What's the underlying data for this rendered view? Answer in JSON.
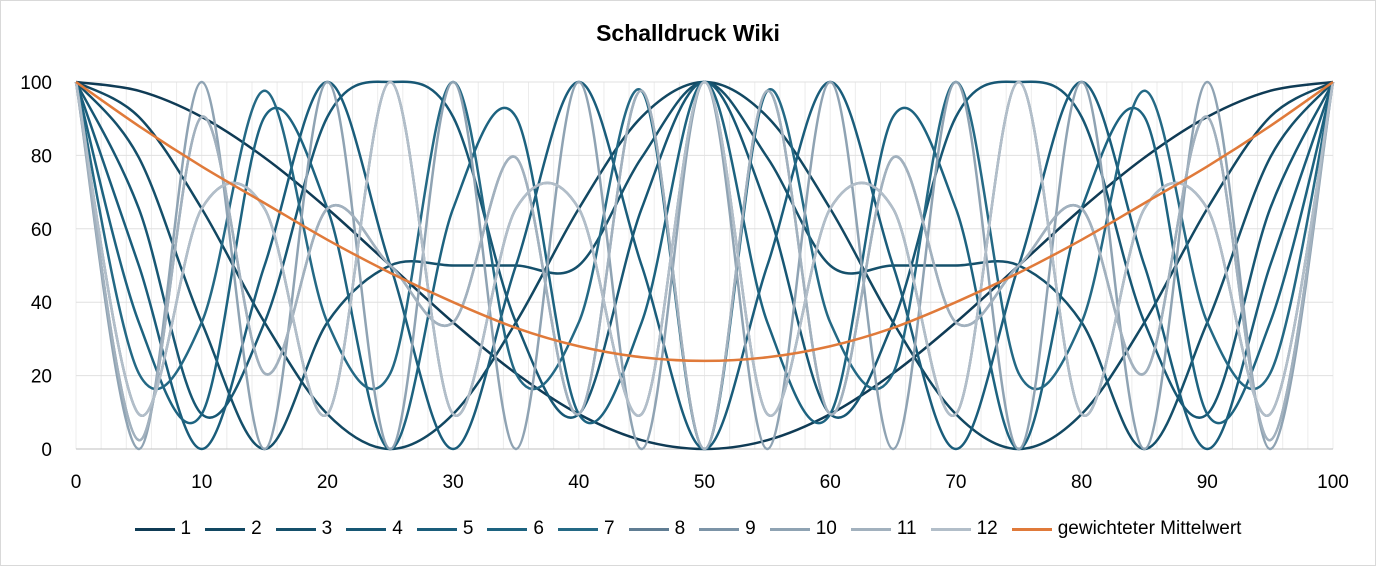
{
  "chart_data": {
    "type": "line",
    "title": "Schalldruck Wiki",
    "xlabel": "",
    "ylabel": "",
    "xlim": [
      0,
      100
    ],
    "ylim": [
      0,
      100
    ],
    "x_ticks": [
      0,
      10,
      20,
      30,
      40,
      50,
      60,
      70,
      80,
      90,
      100
    ],
    "y_ticks": [
      0,
      20,
      40,
      60,
      80,
      100
    ],
    "grid": true,
    "legend_position": "bottom",
    "x": [
      0,
      5,
      10,
      15,
      20,
      25,
      30,
      35,
      40,
      45,
      50,
      55,
      60,
      65,
      70,
      75,
      80,
      85,
      90,
      95,
      100
    ],
    "series": [
      {
        "name": "1",
        "color": "#0f3b55",
        "values": [
          100,
          97.6,
          90.5,
          79.4,
          65.5,
          50.0,
          34.5,
          20.6,
          9.5,
          2.4,
          0,
          2.4,
          9.5,
          20.6,
          34.5,
          50.0,
          65.5,
          79.4,
          90.5,
          97.6,
          100
        ]
      },
      {
        "name": "2",
        "color": "#124862",
        "values": [
          100,
          90.5,
          65.5,
          34.5,
          9.5,
          0,
          9.5,
          34.5,
          65.5,
          90.5,
          100,
          90.5,
          65.5,
          34.5,
          9.5,
          0,
          9.5,
          34.5,
          65.5,
          90.5,
          100
        ]
      },
      {
        "name": "3",
        "color": "#15506b",
        "values": [
          100,
          79.4,
          34.5,
          0,
          34.5,
          50.0,
          50.0,
          50.0,
          50.0,
          79.4,
          100,
          79.4,
          50.0,
          50.0,
          50.0,
          50.0,
          34.5,
          0,
          34.5,
          79.4,
          100
        ]
      },
      {
        "name": "4",
        "color": "#175774",
        "values": [
          100,
          65.5,
          9.5,
          34.5,
          90.5,
          100,
          90.5,
          34.5,
          9.5,
          65.5,
          100,
          65.5,
          9.5,
          34.5,
          90.5,
          100,
          90.5,
          34.5,
          9.5,
          65.5,
          100
        ]
      },
      {
        "name": "5",
        "color": "#1a5d7b",
        "values": [
          100,
          50.0,
          0,
          50.0,
          100,
          50.0,
          0,
          50.0,
          100,
          50.0,
          0,
          50.0,
          100,
          50.0,
          0,
          50.0,
          100,
          50.0,
          0,
          50.0,
          100
        ]
      },
      {
        "name": "6",
        "color": "#1d6380",
        "values": [
          100,
          34.5,
          9.5,
          90.5,
          65.5,
          0,
          65.5,
          90.5,
          9.5,
          34.5,
          100,
          34.5,
          9.5,
          90.5,
          65.5,
          0,
          65.5,
          90.5,
          9.5,
          34.5,
          100
        ]
      },
      {
        "name": "7",
        "color": "#246985",
        "values": [
          100,
          20.6,
          34.5,
          97.6,
          34.5,
          20.6,
          100,
          20.6,
          34.5,
          97.6,
          0,
          97.6,
          34.5,
          20.6,
          100,
          20.6,
          34.5,
          97.6,
          34.5,
          20.6,
          100
        ]
      },
      {
        "name": "8",
        "color": "#607d93",
        "values": [
          100,
          9.5,
          65.5,
          65.5,
          9.5,
          100,
          9.5,
          65.5,
          65.5,
          9.5,
          100,
          9.5,
          65.5,
          65.5,
          9.5,
          100,
          9.5,
          65.5,
          65.5,
          9.5,
          100
        ]
      },
      {
        "name": "9",
        "color": "#7c94a7",
        "values": [
          100,
          2.4,
          90.5,
          20.6,
          65.5,
          50.0,
          34.5,
          79.4,
          9.5,
          97.6,
          0,
          97.6,
          9.5,
          79.4,
          34.5,
          50.0,
          65.5,
          20.6,
          90.5,
          2.4,
          100
        ]
      },
      {
        "name": "10",
        "color": "#8fa3b3",
        "values": [
          100,
          0,
          100,
          0,
          100,
          0,
          100,
          0,
          100,
          0,
          100,
          0,
          100,
          0,
          100,
          0,
          100,
          0,
          100,
          0,
          100
        ]
      },
      {
        "name": "11",
        "color": "#a2b1be",
        "values": [
          100,
          2.4,
          90.5,
          20.6,
          65.5,
          50.0,
          34.5,
          79.4,
          9.5,
          97.6,
          0,
          97.6,
          9.5,
          79.4,
          34.5,
          50.0,
          65.5,
          20.6,
          90.5,
          2.4,
          100
        ]
      },
      {
        "name": "12",
        "color": "#b2bec9",
        "values": [
          100,
          9.5,
          65.5,
          65.5,
          9.5,
          100,
          9.5,
          65.5,
          65.5,
          9.5,
          100,
          9.5,
          65.5,
          65.5,
          9.5,
          100,
          9.5,
          65.5,
          65.5,
          9.5,
          100
        ]
      },
      {
        "name": "gewichteter Mittelwert",
        "color": "#e07a3a",
        "values": [
          100,
          88,
          77,
          67,
          57,
          48,
          40,
          33,
          28,
          25,
          24,
          25,
          28,
          33,
          40,
          48,
          57,
          67,
          77,
          88,
          100
        ]
      }
    ]
  }
}
